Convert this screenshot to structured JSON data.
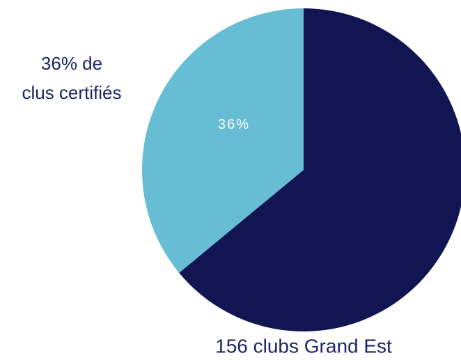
{
  "chart_data": {
    "type": "pie",
    "categories": [
      "36% de\nclus certifiés",
      "156 clubs Grand Est"
    ],
    "values": [
      36,
      64
    ],
    "value_labels": [
      "36%",
      null
    ],
    "colors": [
      "#67bdd4",
      "#111653"
    ]
  }
}
